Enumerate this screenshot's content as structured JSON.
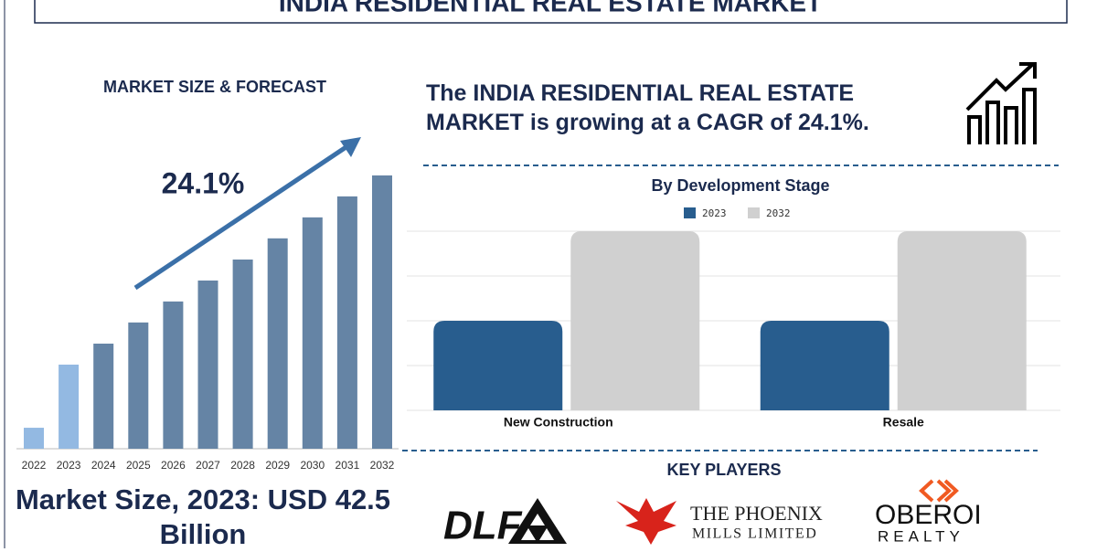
{
  "header": {
    "title": "INDIA RESIDENTIAL REAL ESTATE MARKET"
  },
  "chart_data": [
    {
      "type": "bar",
      "title": "MARKET SIZE & FORECAST",
      "annotation": "24.1%",
      "categories": [
        "2022",
        "2023",
        "2024",
        "2025",
        "2026",
        "2027",
        "2028",
        "2029",
        "2030",
        "2031",
        "2032"
      ],
      "values": [
        10.6,
        42.5,
        53.1,
        63.8,
        74.4,
        85.0,
        95.6,
        106.3,
        116.9,
        127.5,
        138.1
      ],
      "colors": [
        "#93b9e2",
        "#93b9e2",
        "#6584a5",
        "#6584a5",
        "#6584a5",
        "#6584a5",
        "#6584a5",
        "#6584a5",
        "#6584a5",
        "#6584a5",
        "#6584a5"
      ],
      "ylim": [
        0,
        145
      ]
    },
    {
      "type": "grouped_bar",
      "title": "By Development Stage",
      "categories": [
        "New Construction",
        "Resale"
      ],
      "series": [
        {
          "name": "2023",
          "color": "#285d8e",
          "values": [
            2,
            2
          ]
        },
        {
          "name": "2032",
          "color": "#d0d0d0",
          "values": [
            4,
            4
          ]
        }
      ],
      "ylim": [
        0,
        4
      ],
      "yticks": [
        0,
        1,
        2,
        3,
        4
      ],
      "grid": true,
      "legend": "top"
    }
  ],
  "market_size": "Market Size, 2023: USD 42.5 Billion",
  "summary": "The INDIA RESIDENTIAL REAL ESTATE MARKET is growing at a CAGR of 24.1%.",
  "key_players": {
    "title": "KEY PLAYERS",
    "logos": [
      {
        "lines": [
          "DLF"
        ]
      },
      {
        "lines": [
          "THE PHOENIX",
          "MILLS LIMITED"
        ]
      },
      {
        "lines": [
          "OBEROI",
          "REALTY"
        ]
      }
    ]
  }
}
